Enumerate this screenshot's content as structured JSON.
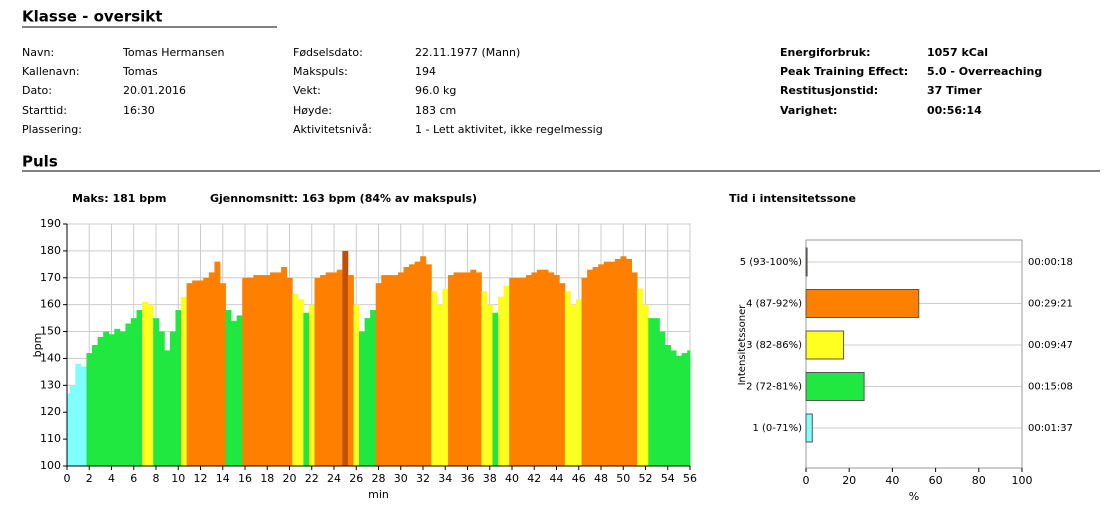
{
  "header": {
    "title": "Klasse - oversikt"
  },
  "info": {
    "col1": [
      {
        "label": "Navn:",
        "value": "Tomas Hermansen"
      },
      {
        "label": "Kallenavn:",
        "value": "Tomas"
      },
      {
        "label": "Dato:",
        "value": "20.01.2016"
      },
      {
        "label": "Starttid:",
        "value": "16:30"
      },
      {
        "label": "Plassering:"
      }
    ],
    "col2": [
      {
        "label": "Fødselsdato:",
        "value": "22.11.1977 (Mann)"
      },
      {
        "label": "Makspuls:",
        "value": "194"
      },
      {
        "label": "Vekt:",
        "value": "96.0 kg"
      },
      {
        "label": "Høyde:",
        "value": "183 cm"
      },
      {
        "label": "Aktivitetsnivå:",
        "value": "1 - Lett aktivitet, ikke regelmessig"
      }
    ],
    "col3": [
      {
        "label": "Energiforbruk:",
        "value": "1057 kCal"
      },
      {
        "label": "Peak Training Effect:",
        "value": "5.0 - Overreaching"
      },
      {
        "label": "Restitusjonstid:",
        "value": "37 Timer"
      },
      {
        "label": "Varighet:",
        "value": "00:56:14"
      }
    ]
  },
  "section": "Puls",
  "stats": {
    "max": "Maks: 181 bpm",
    "avg": "Gjennomsnitt: 163 bpm (84% av makspuls)"
  },
  "chart_data": [
    {
      "type": "area",
      "xlabel": "min",
      "ylabel": "bpm",
      "xlim": [
        0,
        56
      ],
      "xticks": [
        0,
        2,
        4,
        6,
        8,
        10,
        12,
        14,
        16,
        18,
        20,
        22,
        24,
        26,
        28,
        30,
        32,
        34,
        36,
        38,
        40,
        42,
        44,
        46,
        48,
        50,
        52,
        54,
        56
      ],
      "ylim": [
        100,
        190
      ],
      "yticks": [
        100,
        110,
        120,
        130,
        140,
        150,
        160,
        170,
        180,
        190
      ],
      "grid": true,
      "x": [
        0,
        0.5,
        1,
        1.5,
        2,
        2.5,
        3,
        3.5,
        4,
        4.5,
        5,
        5.5,
        6,
        6.5,
        7,
        7.5,
        8,
        8.5,
        9,
        9.5,
        10,
        10.5,
        11,
        11.5,
        12,
        12.5,
        13,
        13.5,
        14,
        14.5,
        15,
        15.5,
        16,
        16.5,
        17,
        17.5,
        18,
        18.5,
        19,
        19.5,
        20,
        20.5,
        21,
        21.5,
        22,
        22.5,
        23,
        23.5,
        24,
        24.5,
        25,
        25.5,
        26,
        26.5,
        27,
        27.5,
        28,
        28.5,
        29,
        29.5,
        30,
        30.5,
        31,
        31.5,
        32,
        32.5,
        33,
        33.5,
        34,
        34.5,
        35,
        35.5,
        36,
        36.5,
        37,
        37.5,
        38,
        38.5,
        39,
        39.5,
        40,
        40.5,
        41,
        41.5,
        42,
        42.5,
        43,
        43.5,
        44,
        44.5,
        45,
        45.5,
        46,
        46.5,
        47,
        47.5,
        48,
        48.5,
        49,
        49.5,
        50,
        50.5,
        51,
        51.5,
        52,
        52.5,
        53,
        53.5,
        54,
        54.5,
        55,
        55.5,
        56
      ],
      "series": [
        {
          "name": "Puls",
          "values": [
            127,
            130,
            138,
            137,
            142,
            145,
            148,
            150,
            149,
            151,
            150,
            153,
            155,
            158,
            161,
            160,
            155,
            150,
            143,
            150,
            158,
            163,
            168,
            169,
            169,
            170,
            172,
            176,
            168,
            158,
            154,
            156,
            170,
            170,
            171,
            171,
            171,
            172,
            172,
            174,
            170,
            164,
            162,
            157,
            160,
            170,
            171,
            172,
            172,
            173,
            180,
            171,
            160,
            150,
            155,
            158,
            168,
            171,
            171,
            171,
            172,
            174,
            175,
            176,
            178,
            175,
            165,
            160,
            166,
            171,
            172,
            172,
            172,
            173,
            172,
            165,
            160,
            157,
            163,
            167,
            170,
            170,
            170,
            171,
            172,
            173,
            173,
            172,
            171,
            168,
            165,
            160,
            162,
            170,
            173,
            174,
            175,
            176,
            176,
            177,
            178,
            177,
            172,
            166,
            160,
            155,
            155,
            150,
            145,
            143,
            141,
            142,
            143
          ]
        }
      ]
    },
    {
      "type": "hbar",
      "title": "Tid i intensitetssone",
      "ylabel": "Intensitetssoner",
      "xlabel": "%",
      "xlim": [
        0,
        100
      ],
      "xticks": [
        0,
        20,
        40,
        60,
        80,
        100
      ],
      "grid": true,
      "categories": [
        "1 (0-71%)",
        "2 (72-81%)",
        "3 (82-86%)",
        "4 (87-92%)",
        "5 (93-100%)"
      ],
      "values": [
        2.9,
        26.9,
        17.4,
        52.2,
        0.5
      ],
      "value_labels": [
        "00:01:37",
        "00:15:08",
        "00:09:47",
        "00:29:21",
        "00:00:18"
      ],
      "colors": [
        "#80ffff",
        "#20e840",
        "#ffff20",
        "#ff8000",
        "#c05000"
      ]
    }
  ]
}
